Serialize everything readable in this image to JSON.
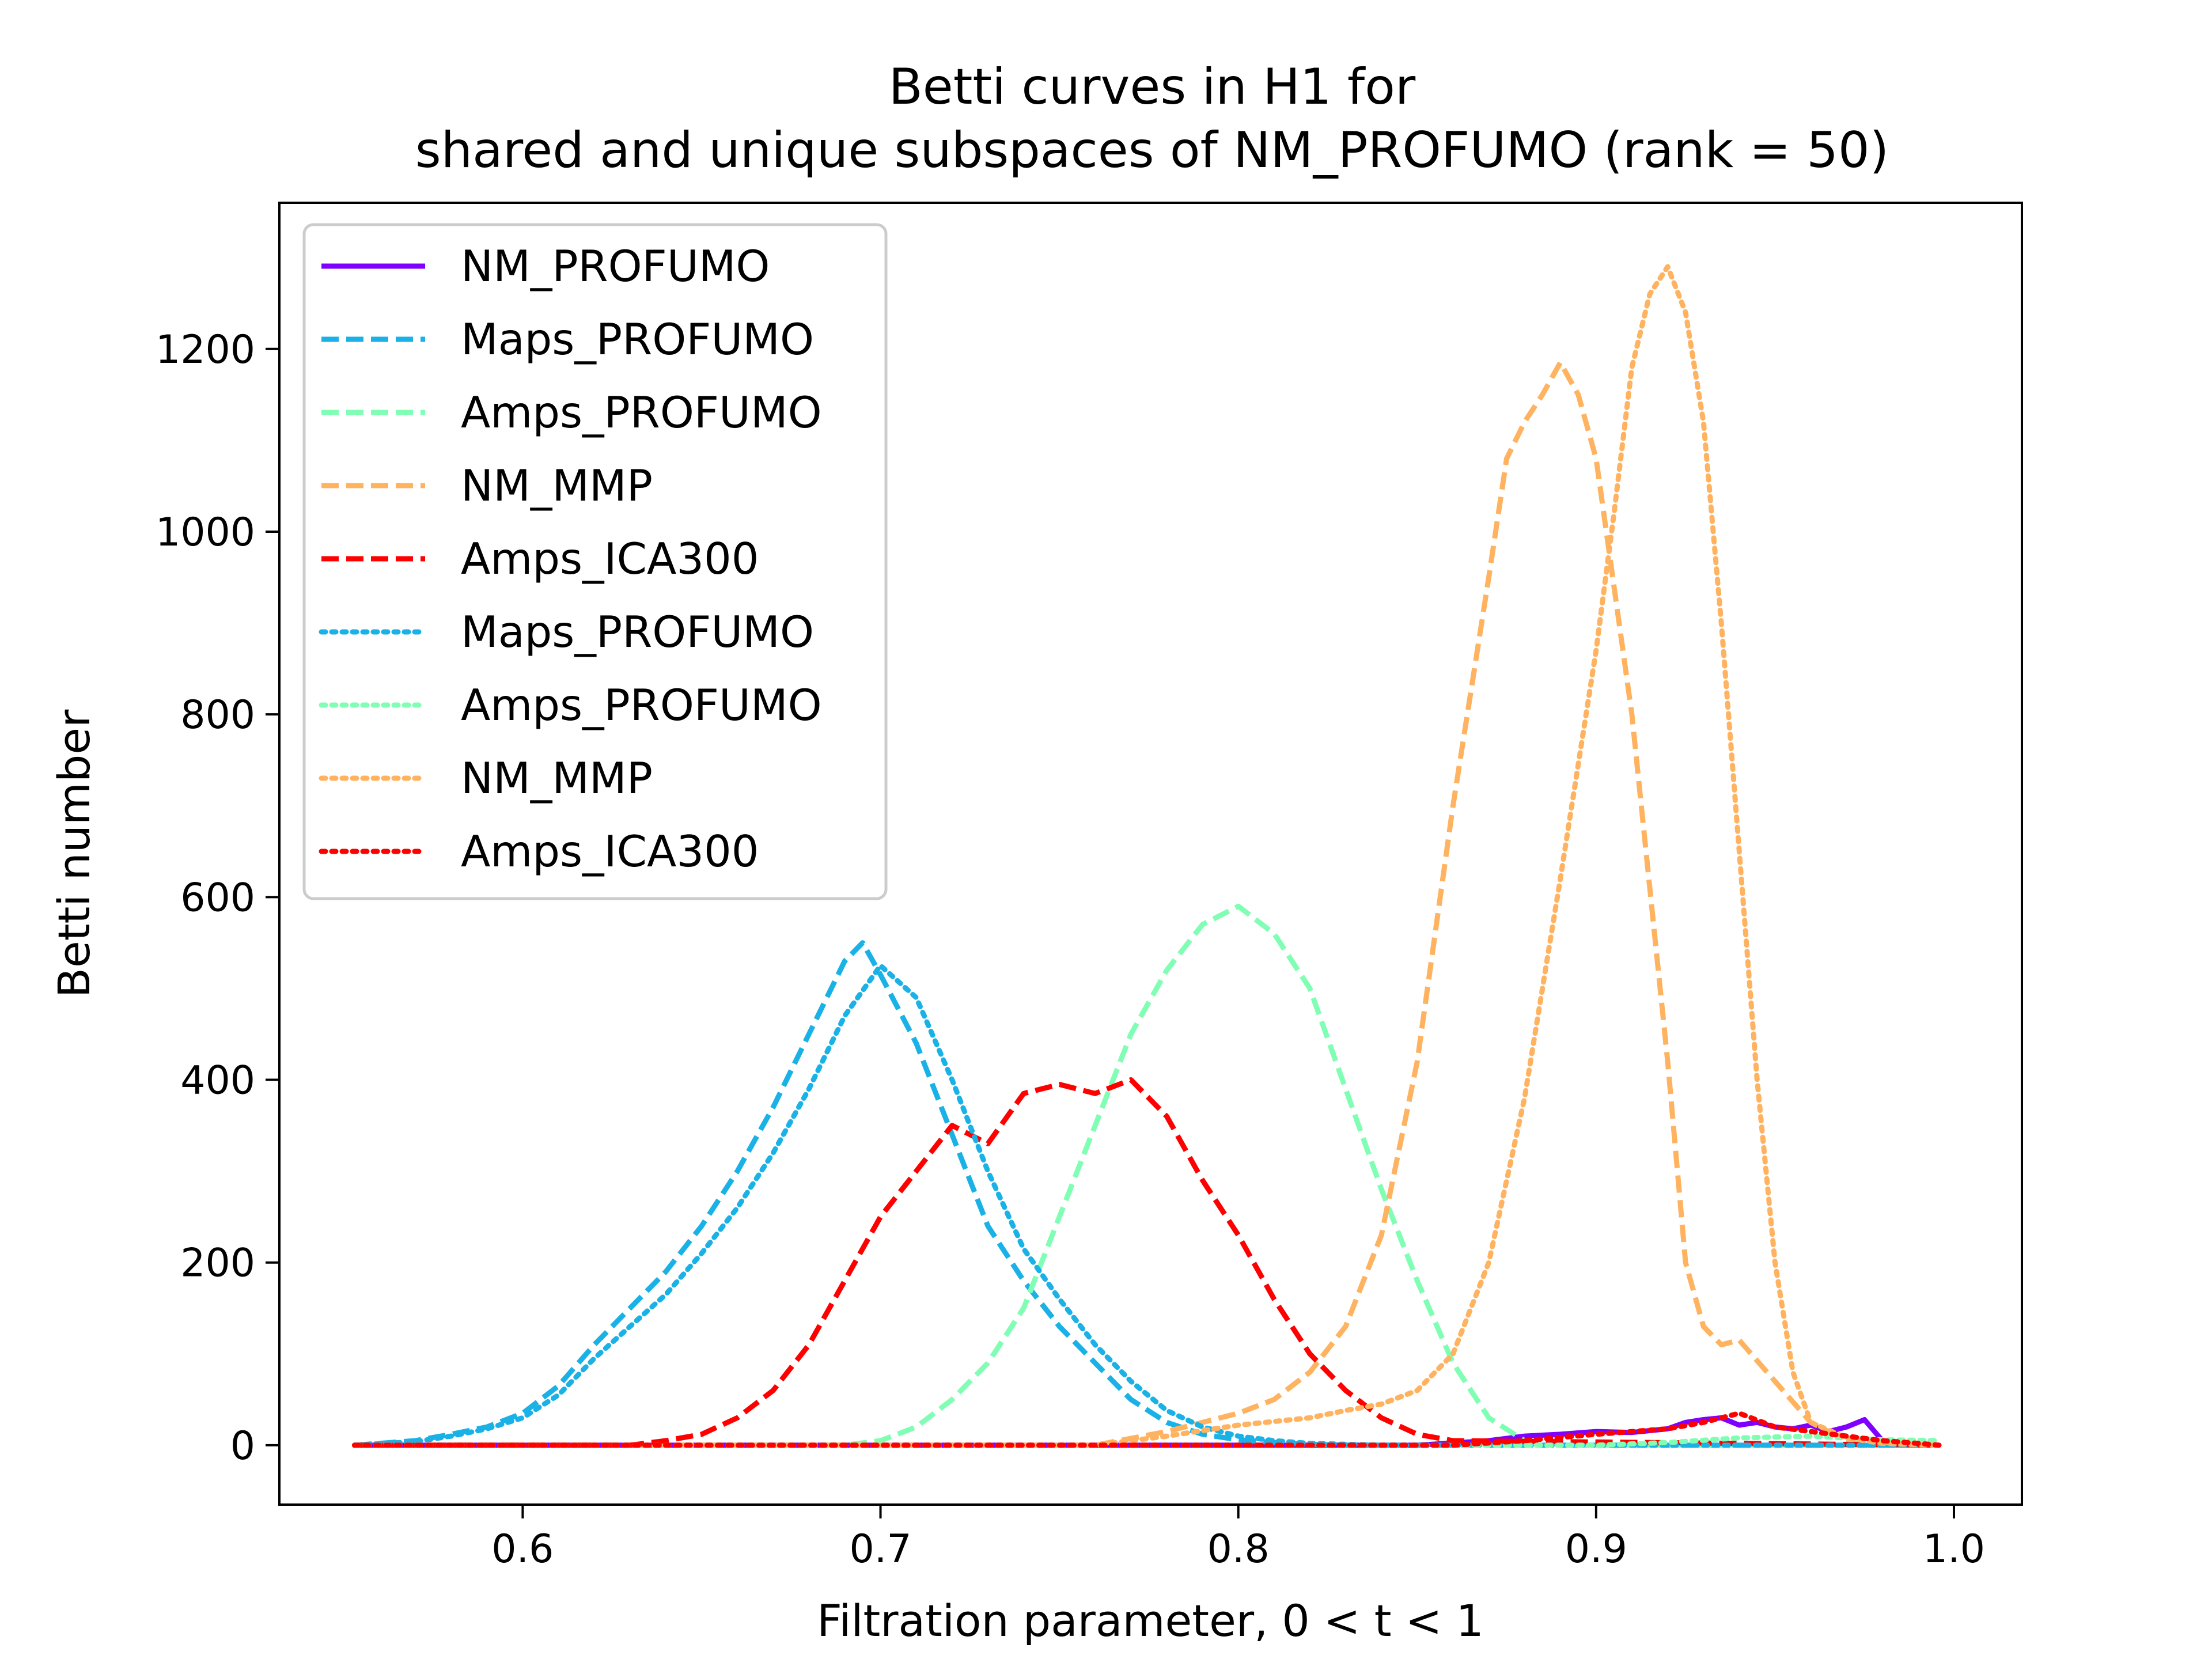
{
  "chart_data": {
    "type": "line",
    "title": "Betti curves in H1 for",
    "subtitle": "shared and unique subspaces of NM_PROFUMO (rank = 50)",
    "xlabel": "Filtration parameter, 0 < t < 1",
    "ylabel": "Betti number",
    "xlim": [
      0.532,
      1.019
    ],
    "ylim": [
      -65,
      1360
    ],
    "xticks": [
      0.6,
      0.7,
      0.8,
      0.9,
      1.0
    ],
    "xtick_labels": [
      "0.6",
      "0.7",
      "0.8",
      "0.9",
      "1.0"
    ],
    "yticks": [
      0,
      200,
      400,
      600,
      800,
      1000,
      1200
    ],
    "ytick_labels": [
      "0",
      "200",
      "400",
      "600",
      "800",
      "1000",
      "1200"
    ],
    "grid": false,
    "legend_position": "upper-left",
    "series": [
      {
        "name": "NM_PROFUMO",
        "color": "#8000ff",
        "style": "solid",
        "x": [
          0.553,
          0.85,
          0.87,
          0.88,
          0.89,
          0.9,
          0.91,
          0.92,
          0.925,
          0.93,
          0.935,
          0.94,
          0.945,
          0.95,
          0.955,
          0.96,
          0.965,
          0.97,
          0.975,
          0.98
        ],
        "y": [
          0,
          0,
          5,
          10,
          12,
          15,
          14,
          18,
          25,
          28,
          30,
          22,
          25,
          20,
          18,
          22,
          15,
          20,
          28,
          5
        ]
      },
      {
        "name": "Maps_PROFUMO",
        "color": "#1ab2e6",
        "style": "dashed",
        "x": [
          0.553,
          0.57,
          0.58,
          0.59,
          0.6,
          0.61,
          0.62,
          0.63,
          0.64,
          0.65,
          0.66,
          0.67,
          0.68,
          0.69,
          0.695,
          0.7,
          0.71,
          0.72,
          0.73,
          0.74,
          0.75,
          0.76,
          0.77,
          0.78,
          0.79,
          0.8,
          0.81,
          0.82,
          0.83,
          0.84,
          0.996
        ],
        "y": [
          0,
          5,
          12,
          20,
          35,
          65,
          110,
          150,
          190,
          240,
          300,
          370,
          450,
          530,
          550,
          515,
          440,
          340,
          240,
          180,
          130,
          90,
          50,
          25,
          12,
          6,
          3,
          1,
          0,
          0,
          0
        ]
      },
      {
        "name": "Amps_PROFUMO",
        "color": "#80ffb4",
        "style": "dashed",
        "x": [
          0.553,
          0.69,
          0.7,
          0.71,
          0.72,
          0.73,
          0.74,
          0.75,
          0.76,
          0.77,
          0.78,
          0.79,
          0.8,
          0.81,
          0.82,
          0.83,
          0.84,
          0.85,
          0.86,
          0.87,
          0.88,
          0.89,
          0.9,
          0.996
        ],
        "y": [
          0,
          0,
          5,
          20,
          50,
          90,
          150,
          250,
          350,
          450,
          520,
          570,
          590,
          560,
          500,
          390,
          280,
          180,
          90,
          30,
          5,
          1,
          0,
          0
        ]
      },
      {
        "name": "NM_MMP",
        "color": "#ffb360",
        "style": "dashed",
        "x": [
          0.553,
          0.76,
          0.78,
          0.8,
          0.81,
          0.82,
          0.83,
          0.84,
          0.85,
          0.86,
          0.87,
          0.875,
          0.88,
          0.885,
          0.89,
          0.895,
          0.9,
          0.91,
          0.92,
          0.925,
          0.93,
          0.935,
          0.94,
          0.95,
          0.96,
          0.97,
          0.996
        ],
        "y": [
          0,
          0,
          15,
          35,
          50,
          80,
          130,
          230,
          420,
          700,
          950,
          1080,
          1120,
          1150,
          1185,
          1150,
          1080,
          800,
          420,
          200,
          130,
          110,
          115,
          70,
          25,
          5,
          0
        ]
      },
      {
        "name": "Amps_ICA300",
        "color": "#ff0000",
        "style": "dashed",
        "x": [
          0.553,
          0.63,
          0.64,
          0.65,
          0.66,
          0.67,
          0.68,
          0.69,
          0.7,
          0.71,
          0.72,
          0.73,
          0.74,
          0.75,
          0.76,
          0.77,
          0.78,
          0.79,
          0.8,
          0.81,
          0.82,
          0.83,
          0.84,
          0.85,
          0.86,
          0.996
        ],
        "y": [
          0,
          0,
          5,
          12,
          30,
          60,
          110,
          180,
          250,
          300,
          350,
          330,
          385,
          395,
          385,
          400,
          360,
          290,
          230,
          160,
          100,
          60,
          30,
          12,
          5,
          0
        ]
      },
      {
        "name": "Maps_PROFUMO",
        "color": "#1ab2e6",
        "style": "dotted",
        "x": [
          0.553,
          0.57,
          0.58,
          0.59,
          0.6,
          0.61,
          0.62,
          0.63,
          0.64,
          0.65,
          0.66,
          0.67,
          0.68,
          0.69,
          0.7,
          0.71,
          0.72,
          0.73,
          0.74,
          0.75,
          0.76,
          0.77,
          0.78,
          0.79,
          0.8,
          0.81,
          0.82,
          0.83,
          0.84,
          0.996
        ],
        "y": [
          0,
          4,
          10,
          18,
          30,
          55,
          95,
          130,
          165,
          210,
          260,
          320,
          390,
          470,
          525,
          490,
          400,
          300,
          215,
          160,
          110,
          70,
          38,
          20,
          10,
          5,
          2,
          1,
          0,
          0
        ]
      },
      {
        "name": "Amps_PROFUMO",
        "color": "#80ffb4",
        "style": "dotted",
        "x": [
          0.553,
          0.9,
          0.92,
          0.94,
          0.96,
          0.98,
          0.996
        ],
        "y": [
          0,
          0,
          3,
          8,
          10,
          6,
          5
        ]
      },
      {
        "name": "NM_MMP",
        "color": "#ffb360",
        "style": "dotted",
        "x": [
          0.553,
          0.76,
          0.78,
          0.8,
          0.82,
          0.83,
          0.84,
          0.85,
          0.86,
          0.87,
          0.88,
          0.89,
          0.9,
          0.905,
          0.91,
          0.915,
          0.92,
          0.925,
          0.93,
          0.935,
          0.94,
          0.945,
          0.95,
          0.955,
          0.96,
          0.97,
          0.98,
          0.996
        ],
        "y": [
          0,
          0,
          10,
          22,
          30,
          38,
          45,
          60,
          100,
          200,
          380,
          620,
          870,
          1020,
          1180,
          1260,
          1290,
          1240,
          1120,
          900,
          650,
          400,
          200,
          80,
          25,
          8,
          2,
          0
        ]
      },
      {
        "name": "Amps_ICA300",
        "color": "#ff0000",
        "style": "dotted",
        "x": [
          0.553,
          0.86,
          0.88,
          0.9,
          0.92,
          0.93,
          0.94,
          0.95,
          0.96,
          0.97,
          0.98,
          0.99,
          0.996
        ],
        "y": [
          0,
          0,
          5,
          12,
          18,
          25,
          35,
          20,
          15,
          10,
          5,
          2,
          0
        ]
      }
    ]
  }
}
